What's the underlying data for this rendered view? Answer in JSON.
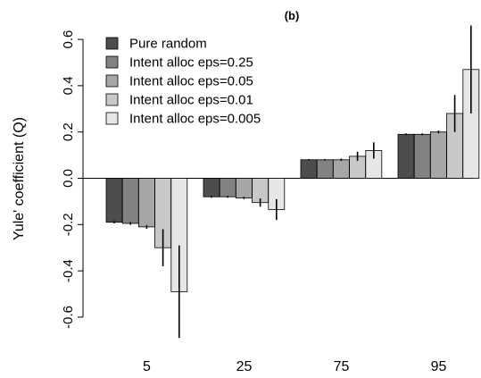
{
  "chart_data": {
    "type": "bar",
    "title": "(b)",
    "xlabel": "",
    "ylabel": "Yule' coefficient (Q)",
    "ylim": [
      -0.6,
      0.6
    ],
    "yticks": [
      "-0.6",
      "-0.4",
      "-0.2",
      "0.0",
      "0.2",
      "0.4",
      "0.6"
    ],
    "grid": false,
    "legend_position": "top-left",
    "categories": [
      "5",
      "25",
      "75",
      "95"
    ],
    "series": [
      {
        "name": "Pure random",
        "color": "#4d4d4d",
        "values": [
          -0.19,
          -0.08,
          0.08,
          0.19
        ],
        "err": [
          0.005,
          0.004,
          0.003,
          0.004
        ]
      },
      {
        "name": "Intent alloc eps=0.25",
        "color": "#828282",
        "values": [
          -0.195,
          -0.08,
          0.08,
          0.19
        ],
        "err": [
          0.006,
          0.004,
          0.003,
          0.004
        ]
      },
      {
        "name": "Intent alloc eps=0.05",
        "color": "#a6a6a6",
        "values": [
          -0.21,
          -0.085,
          0.08,
          0.2
        ],
        "err": [
          0.008,
          0.005,
          0.005,
          0.006
        ]
      },
      {
        "name": "Intent alloc eps=0.01",
        "color": "#c8c8c8",
        "values": [
          -0.3,
          -0.105,
          0.095,
          0.28
        ],
        "err": [
          0.08,
          0.018,
          0.02,
          0.08
        ]
      },
      {
        "name": "Intent alloc eps=0.005",
        "color": "#e6e6e6",
        "values": [
          -0.49,
          -0.135,
          0.12,
          0.47
        ],
        "err": [
          0.2,
          0.045,
          0.035,
          0.19
        ]
      }
    ]
  }
}
